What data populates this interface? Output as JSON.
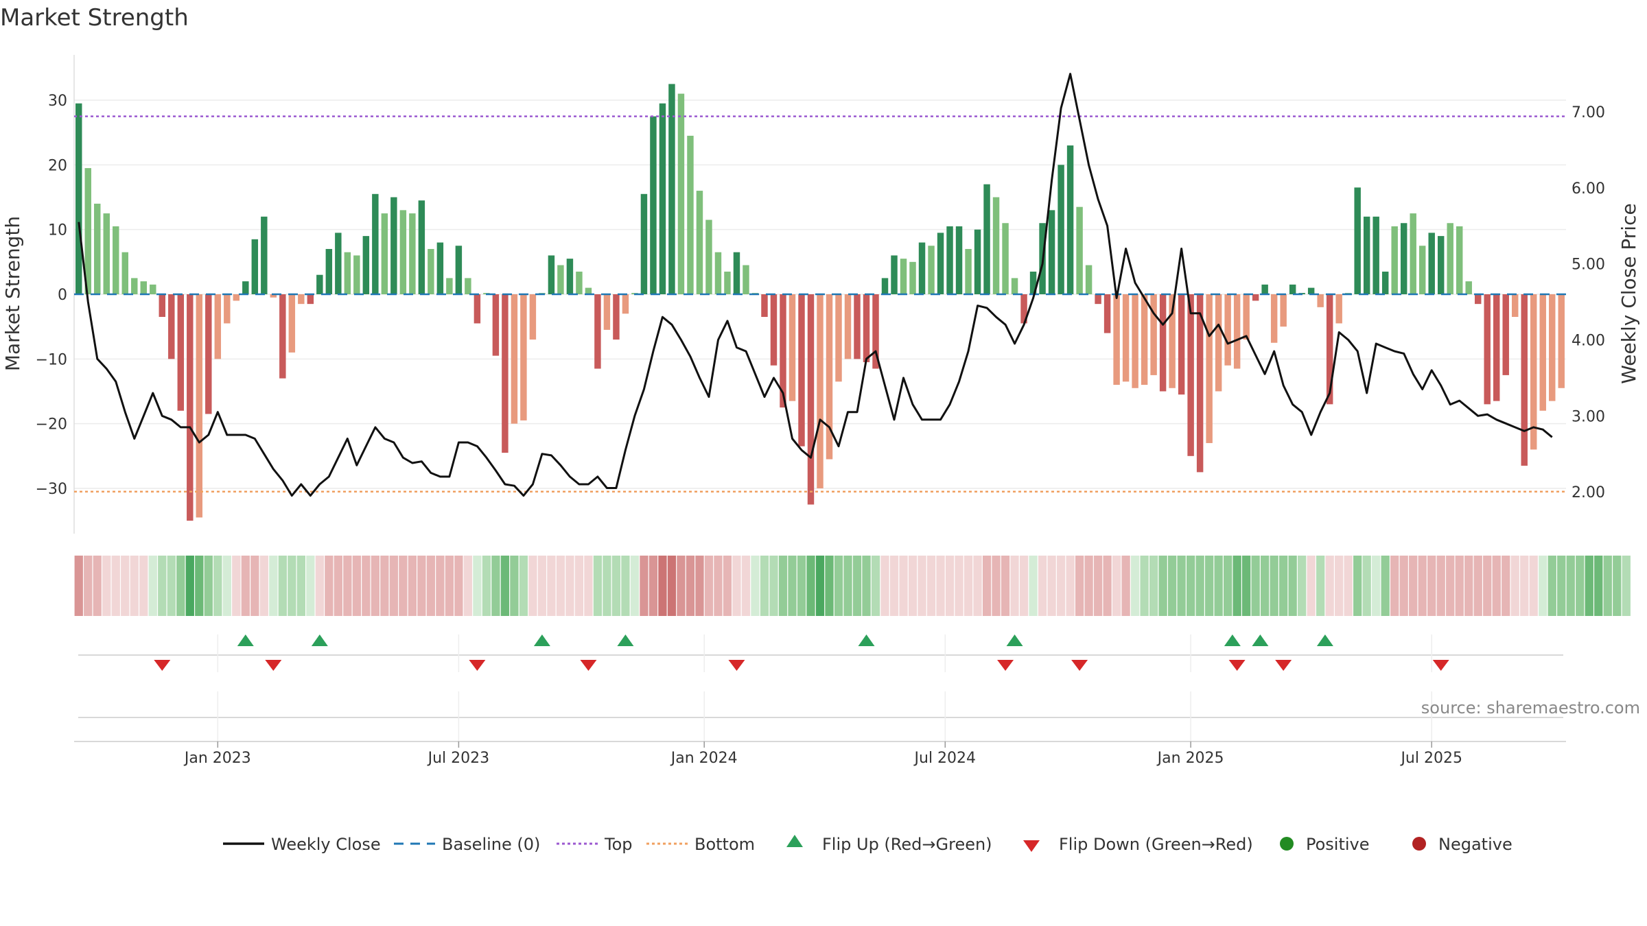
{
  "title": "Market Strength",
  "source": "source: sharemaestro.com",
  "colors": {
    "strong_green": "#2e8b57",
    "light_green": "#7fbf7b",
    "strong_red": "#c85a5a",
    "light_red": "#e89a7e",
    "close_line": "#111111",
    "baseline": "#1f77b4",
    "top": "#9b59d0",
    "bottom": "#f0a060",
    "flip_up": "#2ca05a",
    "flip_down": "#d62728",
    "positive": "#228b22",
    "negative": "#b22222"
  },
  "chart_data": {
    "type": "bar",
    "title": "Market Strength",
    "ylabel": "Market Strength",
    "y2label": "Weekly Close Price",
    "ylim": [
      -37,
      37
    ],
    "y2lim": [
      1.45,
      7.75
    ],
    "y_ticks": [
      "30",
      "20",
      "10",
      "0",
      "−10",
      "−20",
      "−30"
    ],
    "y_tick_values": [
      30,
      20,
      10,
      0,
      -10,
      -20,
      -30
    ],
    "y2_ticks": [
      "7.00",
      "6.00",
      "5.00",
      "4.00",
      "3.00",
      "2.00"
    ],
    "y2_tick_values": [
      7,
      6,
      5,
      4,
      3,
      2
    ],
    "top_level": 27.5,
    "bottom_level": -30.5,
    "x_ticks": [
      "Jan 2023",
      "Jul 2023",
      "Jan 2024",
      "Jul 2024",
      "Jan 2025",
      "Jul 2025"
    ],
    "x_tick_weeks": [
      15,
      41,
      67.5,
      93.5,
      120,
      146
    ],
    "strength": [
      29.5,
      19.5,
      14,
      12.5,
      10.5,
      6.5,
      2.5,
      2,
      1.5,
      -3.5,
      -10,
      -18,
      -35,
      -34.5,
      -18.5,
      -10,
      -4.5,
      -1,
      2,
      8.5,
      12,
      -0.5,
      -13,
      -9,
      -1.5,
      -1.5,
      3,
      7,
      9.5,
      6.5,
      6,
      9,
      15.5,
      12.5,
      15,
      13,
      12.5,
      14.5,
      7,
      8,
      2.5,
      7.5,
      2.5,
      -4.5,
      0.2,
      -9.5,
      -24.5,
      -20,
      -19.5,
      -7,
      0.2,
      6,
      4.5,
      5.5,
      3.5,
      1,
      -11.5,
      -5.5,
      -7,
      -3,
      0.2,
      15.5,
      27.5,
      29.5,
      32.5,
      31,
      24.5,
      16,
      11.5,
      6.5,
      3.5,
      6.5,
      4.5,
      0.2,
      -3.5,
      -11,
      -17.5,
      -16.5,
      -23.5,
      -32.5,
      -30,
      -25.5,
      -13.5,
      -10,
      -10,
      -10.5,
      -11.5,
      2.5,
      6,
      5.5,
      5,
      8,
      7.5,
      9.5,
      10.5,
      10.5,
      7,
      10,
      17,
      15,
      11,
      2.5,
      -4.5,
      3.5,
      11,
      13,
      20,
      23,
      13.5,
      4.5,
      -1.5,
      -6,
      -14,
      -13.5,
      -14.5,
      -14,
      -12.5,
      -15,
      -14.5,
      -15.5,
      -25,
      -27.5,
      -23,
      -15,
      -11,
      -11.5,
      -7,
      -1,
      1.5,
      -7.5,
      -5,
      1.5,
      0.2,
      1,
      -2,
      -17,
      -4.5,
      0.2,
      16.5,
      12,
      12,
      3.5,
      10.5,
      11,
      12.5,
      7.5,
      9.5,
      9,
      11,
      10.5,
      2,
      -1.5,
      -17,
      -16.5,
      -12.5,
      -3.5,
      -26.5,
      -24,
      -18,
      -16.5,
      -14.5
    ],
    "bar_shade": [
      1,
      0,
      0,
      0,
      0,
      0,
      0,
      0,
      0,
      1,
      1,
      1,
      1,
      0,
      1,
      0,
      0,
      0,
      1,
      1,
      1,
      0,
      1,
      0,
      0,
      1,
      1,
      1,
      1,
      0,
      0,
      1,
      1,
      0,
      1,
      0,
      0,
      1,
      0,
      1,
      0,
      1,
      0,
      1,
      0,
      1,
      1,
      0,
      0,
      0,
      0,
      1,
      0,
      1,
      0,
      0,
      1,
      0,
      1,
      0,
      0,
      1,
      1,
      1,
      1,
      0,
      0,
      0,
      0,
      0,
      0,
      1,
      0,
      0,
      1,
      1,
      1,
      0,
      1,
      1,
      0,
      0,
      0,
      0,
      1,
      1,
      1,
      1,
      1,
      0,
      0,
      1,
      0,
      1,
      1,
      1,
      0,
      1,
      1,
      0,
      0,
      0,
      1,
      1,
      1,
      1,
      1,
      1,
      0,
      0,
      1,
      1,
      0,
      0,
      0,
      0,
      0,
      1,
      0,
      1,
      1,
      1,
      0,
      0,
      0,
      0,
      0,
      1,
      1,
      0,
      0,
      1,
      1,
      1,
      0,
      1,
      0,
      0,
      1,
      1,
      1,
      1,
      0,
      1,
      0,
      0,
      1,
      1,
      0,
      0,
      0,
      1,
      1,
      1,
      1,
      0,
      1,
      0,
      0,
      0
    ],
    "close": [
      5.55,
      4.5,
      3.75,
      3.62,
      3.45,
      3.05,
      2.7,
      3.0,
      3.3,
      3.0,
      2.95,
      2.85,
      2.85,
      2.65,
      2.75,
      3.05,
      2.75,
      2.75,
      2.75,
      2.7,
      2.5,
      2.3,
      2.15,
      1.95,
      2.1,
      1.95,
      2.1,
      2.2,
      2.45,
      2.7,
      2.35,
      2.6,
      2.85,
      2.7,
      2.65,
      2.45,
      2.38,
      2.4,
      2.25,
      2.2,
      2.2,
      2.65,
      2.65,
      2.6,
      2.45,
      2.28,
      2.1,
      2.08,
      1.95,
      2.1,
      2.5,
      2.48,
      2.35,
      2.2,
      2.1,
      2.1,
      2.2,
      2.05,
      2.05,
      2.55,
      3.0,
      3.35,
      3.85,
      4.3,
      4.2,
      4.0,
      3.78,
      3.5,
      3.25,
      4.0,
      4.25,
      3.9,
      3.85,
      3.55,
      3.25,
      3.5,
      3.3,
      2.7,
      2.55,
      2.45,
      2.95,
      2.85,
      2.6,
      3.05,
      3.05,
      3.75,
      3.85,
      3.4,
      2.95,
      3.5,
      3.15,
      2.95,
      2.95,
      2.95,
      3.15,
      3.45,
      3.85,
      4.45,
      4.42,
      4.3,
      4.2,
      3.95,
      4.2,
      4.55,
      5.0,
      6.1,
      7.05,
      7.5,
      6.9,
      6.3,
      5.85,
      5.5,
      4.55,
      5.2,
      4.75,
      4.55,
      4.35,
      4.2,
      4.35,
      5.2,
      4.35,
      4.35,
      4.05,
      4.2,
      3.95,
      4.0,
      4.05,
      3.8,
      3.55,
      3.85,
      3.4,
      3.15,
      3.05,
      2.75,
      3.05,
      3.3,
      4.1,
      4.0,
      3.85,
      3.3,
      3.95,
      3.9,
      3.85,
      3.82,
      3.55,
      3.35,
      3.6,
      3.4,
      3.15,
      3.2,
      3.1,
      3.0,
      3.02,
      2.95,
      2.9,
      2.85,
      2.8,
      2.85,
      2.82,
      2.72
    ],
    "ribbon": [
      -3,
      -2,
      -2,
      -1,
      -1,
      -1,
      -1,
      -1,
      0,
      1,
      1,
      2,
      4,
      3,
      2,
      1,
      0,
      -1,
      -2,
      -2,
      -1,
      0,
      1,
      1,
      1,
      0,
      -1,
      -2,
      -2,
      -2,
      -2,
      -2,
      -2,
      -2,
      -2,
      -2,
      -2,
      -2,
      -2,
      -2,
      -2,
      -2,
      -1,
      0,
      1,
      2,
      3,
      2,
      1,
      -1,
      -1,
      -1,
      -1,
      -1,
      -1,
      -1,
      1,
      1,
      1,
      1,
      0,
      -3,
      -3,
      -4,
      -4,
      -3,
      -3,
      -3,
      -2,
      -2,
      -2,
      -1,
      -1,
      0,
      1,
      1,
      2,
      2,
      2,
      3,
      4,
      3,
      2,
      2,
      2,
      2,
      1,
      -1,
      -1,
      -1,
      -1,
      -1,
      -1,
      -1,
      -1,
      -1,
      -1,
      -1,
      -2,
      -2,
      -2,
      -1,
      -1,
      0,
      -1,
      -1,
      -1,
      -1,
      -2,
      -2,
      -2,
      -2,
      -1,
      -2,
      0,
      1,
      1,
      2,
      2,
      2,
      2,
      2,
      2,
      2,
      2,
      3,
      3,
      2,
      2,
      2,
      2,
      2,
      1,
      -1,
      1,
      -1,
      -1,
      -1,
      2,
      1,
      0,
      2,
      -2,
      -2,
      -2,
      -2,
      -2,
      -2,
      -2,
      -2,
      -2,
      -2,
      -2,
      -2,
      -2,
      -1,
      -1,
      -1,
      0,
      2,
      2,
      2,
      2,
      3,
      3,
      2,
      2,
      1
    ],
    "flip_up_weeks": [
      18,
      26,
      50,
      59,
      85,
      101,
      124.5,
      127.5,
      134.5
    ],
    "flip_down_weeks": [
      9,
      21,
      43,
      55,
      71,
      100,
      108,
      125,
      130,
      147
    ],
    "x_weeks_total": 157
  },
  "legend": [
    {
      "type": "line",
      "label": "Weekly Close"
    },
    {
      "type": "baseline",
      "label": "Baseline (0)"
    },
    {
      "type": "top",
      "label": "Top"
    },
    {
      "type": "bottom",
      "label": "Bottom"
    },
    {
      "type": "flip-up",
      "label": "Flip Up (Red→Green)"
    },
    {
      "type": "flip-down",
      "label": "Flip Down (Green→Red)"
    },
    {
      "type": "positive",
      "label": "Positive"
    },
    {
      "type": "negative",
      "label": "Negative"
    }
  ]
}
